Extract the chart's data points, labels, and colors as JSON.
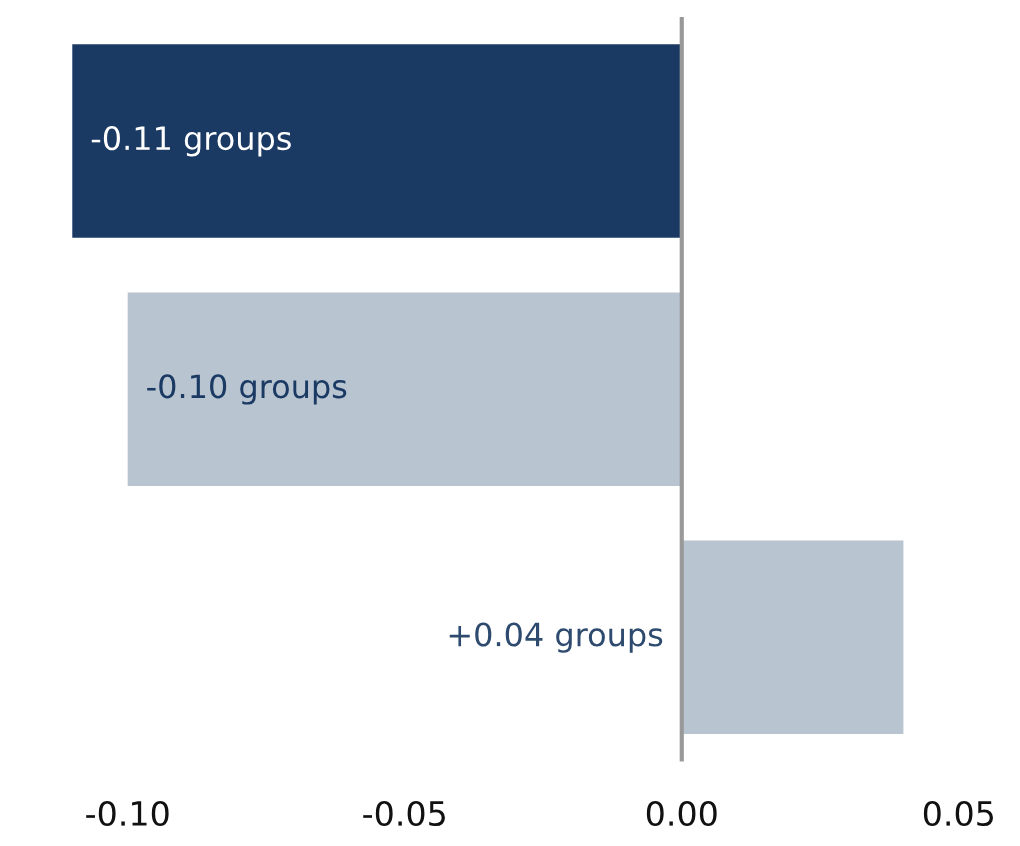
{
  "chart_data": {
    "type": "bar",
    "orientation": "horizontal",
    "categories": [
      null,
      null,
      null
    ],
    "values": [
      -0.11,
      -0.1,
      0.04
    ],
    "colors": [
      "#1b3a63",
      "#b9c4d1",
      "#b9c4d1"
    ],
    "value_labels": [
      "-0.11 groups",
      "-0.10 groups",
      "+0.04 groups"
    ],
    "xlim": [
      -0.112,
      0.05
    ],
    "xticks": [
      {
        "value": -0.1,
        "label": "-0.10"
      },
      {
        "value": -0.05,
        "label": "-0.05"
      },
      {
        "value": 0,
        "label": "0.00"
      },
      {
        "value": 0.05,
        "label": "0.05"
      }
    ],
    "ref_lines": [
      {
        "axis": "x",
        "value": 0,
        "color": "#999999"
      }
    ],
    "grid": false
  }
}
